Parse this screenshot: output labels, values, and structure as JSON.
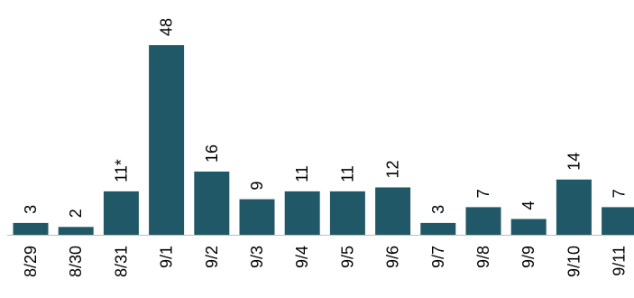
{
  "chart_data": {
    "type": "bar",
    "title": "",
    "xlabel": "",
    "ylabel": "",
    "ylim": [
      0,
      48
    ],
    "grid": false,
    "legend": "none",
    "bar_color": "#215868",
    "categories": [
      "8/29",
      "8/30",
      "8/31",
      "9/1",
      "9/2",
      "9/3",
      "9/4",
      "9/5",
      "9/6",
      "9/7",
      "9/8",
      "9/9",
      "9/10",
      "9/11"
    ],
    "values": [
      3,
      2,
      11,
      48,
      16,
      9,
      11,
      11,
      12,
      3,
      7,
      4,
      14,
      7
    ],
    "data_labels": [
      "3",
      "2",
      "11*",
      "48",
      "16",
      "9",
      "11",
      "11",
      "12",
      "3",
      "7",
      "4",
      "14",
      "7"
    ]
  }
}
